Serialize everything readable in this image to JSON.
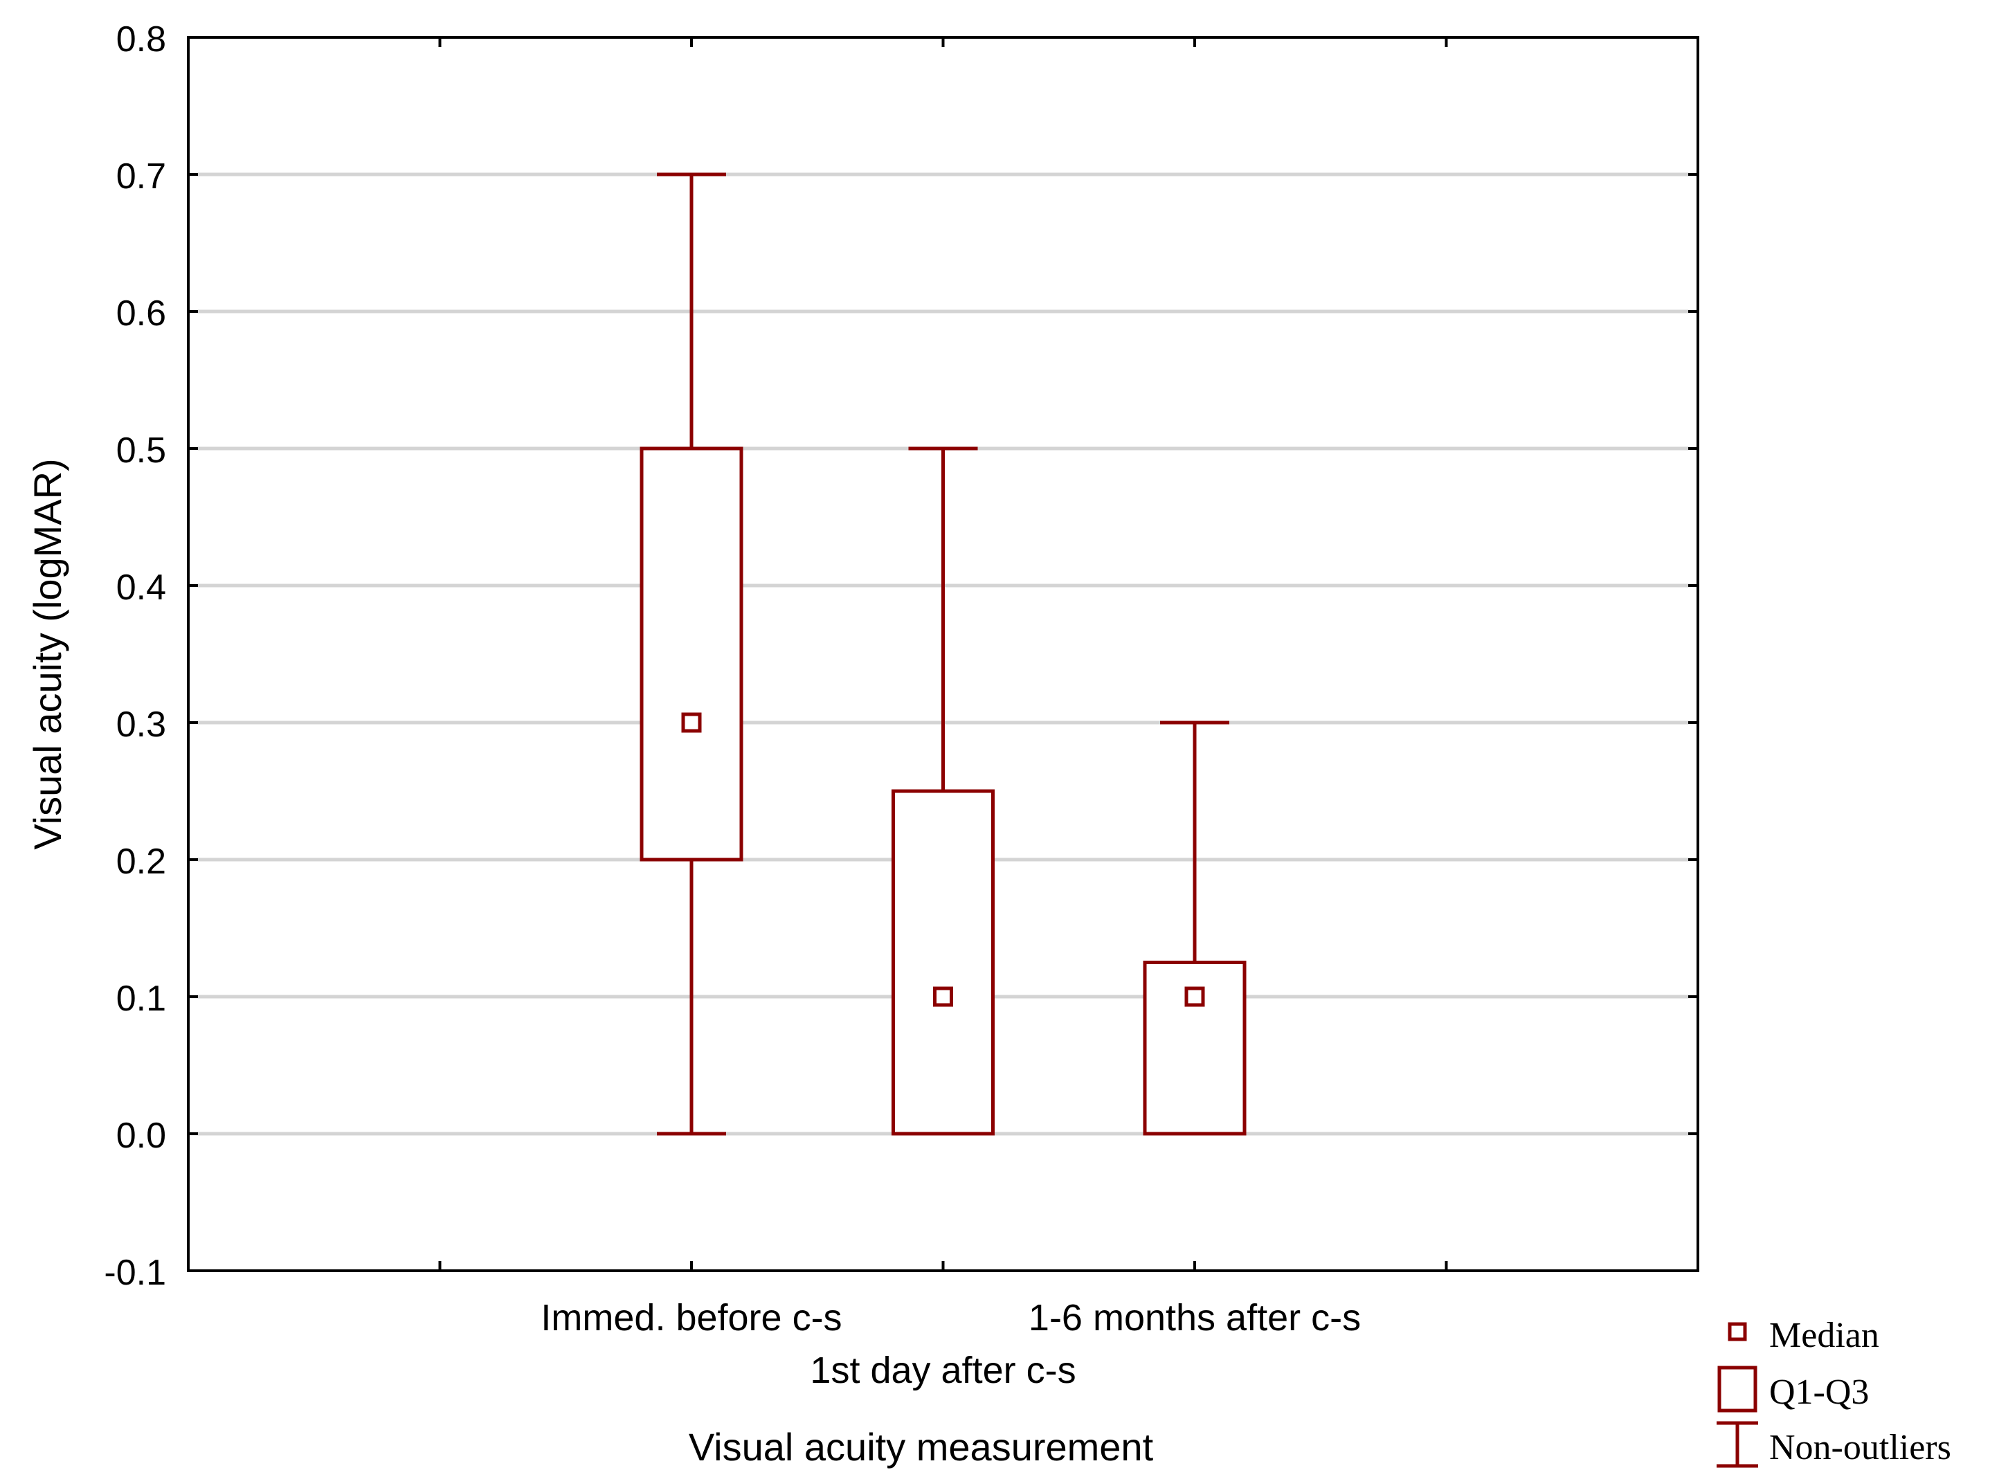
{
  "chart_data": {
    "type": "box",
    "xlabel": "Visual acuity measurement",
    "ylabel": "Visual acuity (logMAR)",
    "ylim": [
      -0.1,
      0.8
    ],
    "yticks": [
      "-0.1",
      "0.0",
      "0.1",
      "0.2",
      "0.3",
      "0.4",
      "0.5",
      "0.6",
      "0.7",
      "0.8"
    ],
    "grid": true,
    "categories": [
      "Immed. before c-s",
      "1st day after c-s",
      "1-6 months after c-s"
    ],
    "boxes": [
      {
        "category": "Immed. before c-s",
        "whisker_low": 0.0,
        "q1": 0.2,
        "median": 0.3,
        "q3": 0.5,
        "whisker_high": 0.7
      },
      {
        "category": "1st day after c-s",
        "whisker_low": 0.0,
        "q1": 0.0,
        "median": 0.1,
        "q3": 0.25,
        "whisker_high": 0.5
      },
      {
        "category": "1-6 months after c-s",
        "whisker_low": 0.0,
        "q1": 0.0,
        "median": 0.1,
        "q3": 0.125,
        "whisker_high": 0.3
      }
    ],
    "legend": {
      "position": "bottom-right",
      "items": [
        "Median",
        "Q1-Q3",
        "Non-outliers"
      ]
    },
    "color": "#8b0000"
  }
}
